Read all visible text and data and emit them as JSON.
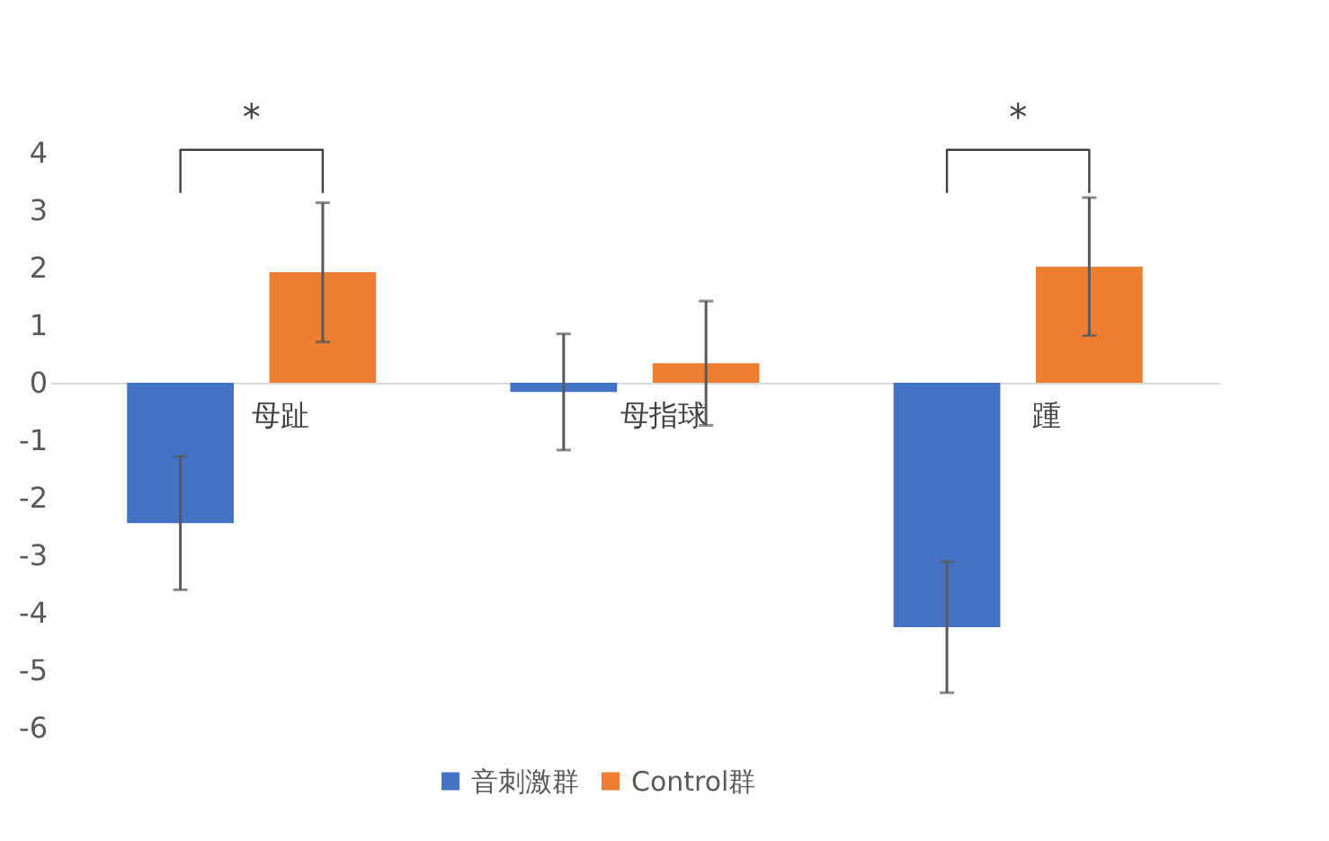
{
  "chart_data": {
    "type": "bar",
    "categories": [
      "母趾",
      "母指球",
      "踵"
    ],
    "series": [
      {
        "name": "音刺激群",
        "color": "#4472c4",
        "values": [
          -2.44,
          -0.16,
          -4.25
        ],
        "errors": [
          1.16,
          1.01,
          1.14
        ]
      },
      {
        "name": "Control群",
        "color": "#ed7d31",
        "values": [
          1.92,
          0.34,
          2.02
        ],
        "errors": [
          1.21,
          1.08,
          1.2
        ]
      }
    ],
    "ylim": [
      -6,
      4
    ],
    "yticks": [
      -6,
      -5,
      -4,
      -3,
      -2,
      -1,
      0,
      1,
      2,
      3,
      4
    ],
    "annotations": [
      "*",
      "*"
    ],
    "grid": false,
    "legend": "bottom"
  }
}
